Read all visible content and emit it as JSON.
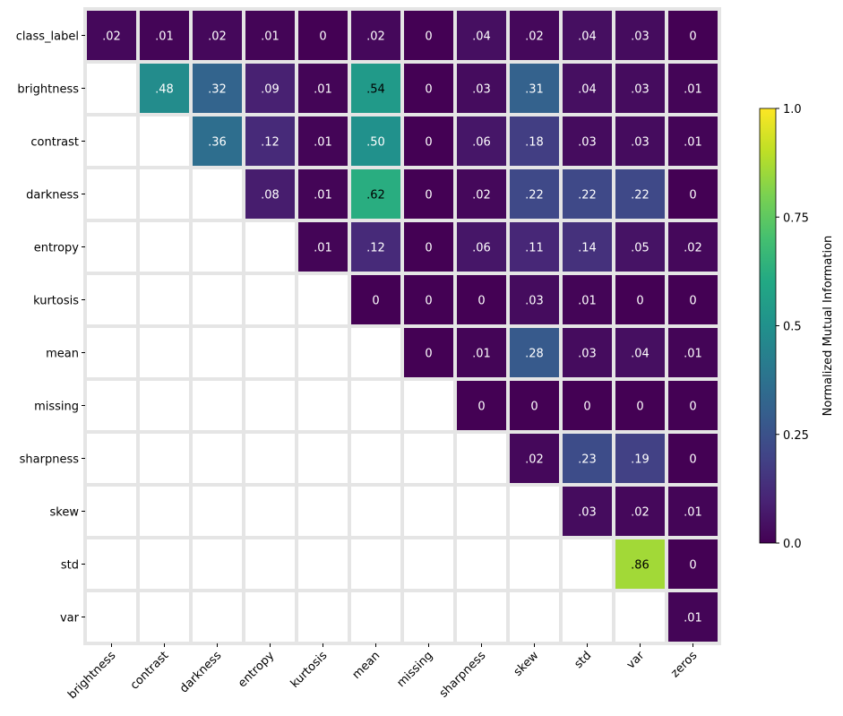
{
  "chart_data": {
    "type": "heatmap",
    "title": "",
    "xlabel": "",
    "ylabel": "",
    "x_categories": [
      "brightness",
      "contrast",
      "darkness",
      "entropy",
      "kurtosis",
      "mean",
      "missing",
      "sharpness",
      "skew",
      "std",
      "var",
      "zeros"
    ],
    "y_categories": [
      "class_label",
      "brightness",
      "contrast",
      "darkness",
      "entropy",
      "kurtosis",
      "mean",
      "missing",
      "sharpness",
      "skew",
      "std",
      "var"
    ],
    "values": [
      [
        0.02,
        0.01,
        0.02,
        0.01,
        0,
        0.02,
        0,
        0.04,
        0.02,
        0.04,
        0.03,
        0
      ],
      [
        null,
        0.48,
        0.32,
        0.09,
        0.01,
        0.54,
        0,
        0.03,
        0.31,
        0.04,
        0.03,
        0.01
      ],
      [
        null,
        null,
        0.36,
        0.12,
        0.01,
        0.5,
        0,
        0.06,
        0.18,
        0.03,
        0.03,
        0.01
      ],
      [
        null,
        null,
        null,
        0.08,
        0.01,
        0.62,
        0,
        0.02,
        0.22,
        0.22,
        0.22,
        0
      ],
      [
        null,
        null,
        null,
        null,
        0.01,
        0.12,
        0,
        0.06,
        0.11,
        0.14,
        0.05,
        0.02
      ],
      [
        null,
        null,
        null,
        null,
        null,
        0,
        0,
        0,
        0.03,
        0.01,
        0,
        0
      ],
      [
        null,
        null,
        null,
        null,
        null,
        null,
        0,
        0.01,
        0.28,
        0.03,
        0.04,
        0.01
      ],
      [
        null,
        null,
        null,
        null,
        null,
        null,
        null,
        0,
        0,
        0,
        0,
        0
      ],
      [
        null,
        null,
        null,
        null,
        null,
        null,
        null,
        null,
        0.02,
        0.23,
        0.19,
        0
      ],
      [
        null,
        null,
        null,
        null,
        null,
        null,
        null,
        null,
        null,
        0.03,
        0.02,
        0.01
      ],
      [
        null,
        null,
        null,
        null,
        null,
        null,
        null,
        null,
        null,
        null,
        0.86,
        0
      ],
      [
        null,
        null,
        null,
        null,
        null,
        null,
        null,
        null,
        null,
        null,
        null,
        0.01
      ]
    ],
    "labels": [
      [
        ".02",
        ".01",
        ".02",
        ".01",
        "0",
        ".02",
        "0",
        ".04",
        ".02",
        ".04",
        ".03",
        "0"
      ],
      [
        null,
        ".48",
        ".32",
        ".09",
        ".01",
        ".54",
        "0",
        ".03",
        ".31",
        ".04",
        ".03",
        ".01"
      ],
      [
        null,
        null,
        ".36",
        ".12",
        ".01",
        ".50",
        "0",
        ".06",
        ".18",
        ".03",
        ".03",
        ".01"
      ],
      [
        null,
        null,
        null,
        ".08",
        ".01",
        ".62",
        "0",
        ".02",
        ".22",
        ".22",
        ".22",
        "0"
      ],
      [
        null,
        null,
        null,
        null,
        ".01",
        ".12",
        "0",
        ".06",
        ".11",
        ".14",
        ".05",
        ".02"
      ],
      [
        null,
        null,
        null,
        null,
        null,
        "0",
        "0",
        "0",
        ".03",
        ".01",
        "0",
        "0"
      ],
      [
        null,
        null,
        null,
        null,
        null,
        null,
        "0",
        ".01",
        ".28",
        ".03",
        ".04",
        ".01"
      ],
      [
        null,
        null,
        null,
        null,
        null,
        null,
        null,
        "0",
        "0",
        "0",
        "0",
        "0"
      ],
      [
        null,
        null,
        null,
        null,
        null,
        null,
        null,
        null,
        ".02",
        ".23",
        ".19",
        "0"
      ],
      [
        null,
        null,
        null,
        null,
        null,
        null,
        null,
        null,
        null,
        ".03",
        ".02",
        ".01"
      ],
      [
        null,
        null,
        null,
        null,
        null,
        null,
        null,
        null,
        null,
        null,
        ".86",
        "0"
      ],
      [
        null,
        null,
        null,
        null,
        null,
        null,
        null,
        null,
        null,
        null,
        null,
        ".01"
      ]
    ],
    "colorscale": "viridis",
    "vmin": 0,
    "vmax": 1,
    "grid_line_color": "#e5e5e5",
    "colorbar": {
      "label": "Normalized Mutual Information",
      "ticks": [
        0.0,
        0.25,
        0.5,
        0.75,
        1.0
      ],
      "tick_labels": [
        "0.0",
        "0.25",
        "0.5",
        "0.75",
        "1.0"
      ],
      "placement": "right"
    }
  }
}
